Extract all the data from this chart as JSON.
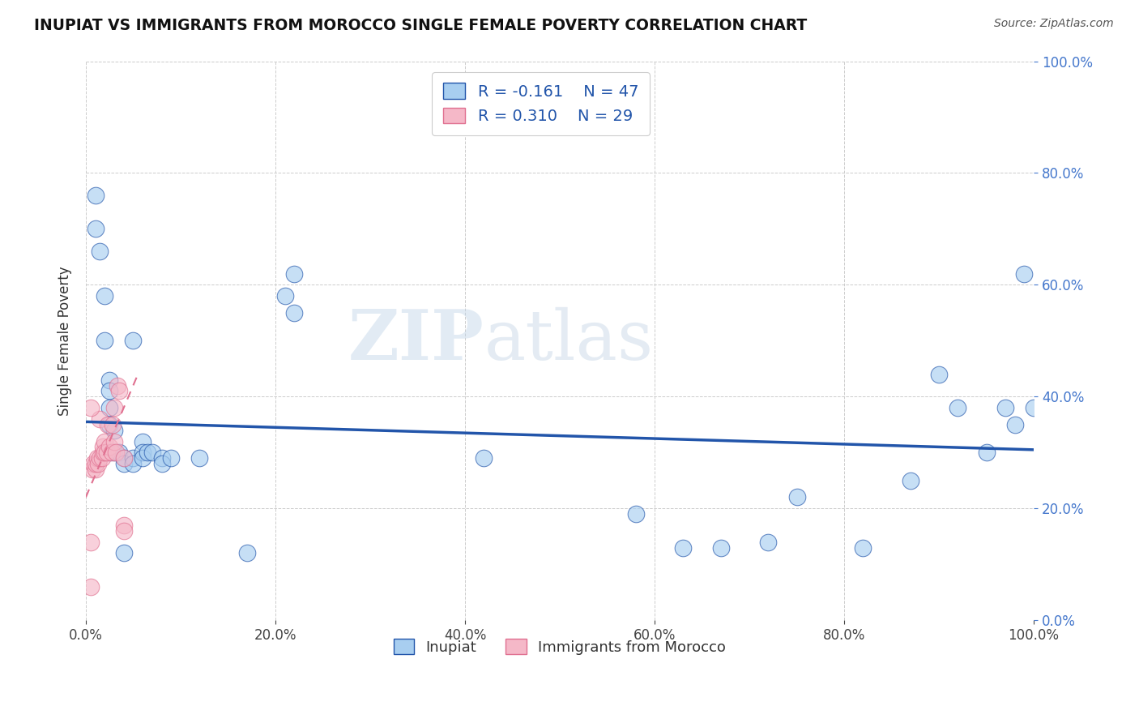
{
  "title": "INUPIAT VS IMMIGRANTS FROM MOROCCO SINGLE FEMALE POVERTY CORRELATION CHART",
  "source": "Source: ZipAtlas.com",
  "ylabel": "Single Female Poverty",
  "xlim": [
    0.0,
    1.0
  ],
  "ylim": [
    0.0,
    1.0
  ],
  "xticks": [
    0.0,
    0.2,
    0.4,
    0.6,
    0.8,
    1.0
  ],
  "yticks": [
    0.0,
    0.2,
    0.4,
    0.6,
    0.8,
    1.0
  ],
  "inupiat_color": "#A8CEF0",
  "morocco_color": "#F5B8C8",
  "trendline_inupiat_color": "#2255AA",
  "trendline_morocco_color": "#E07090",
  "legend_r_inupiat": "-0.161",
  "legend_n_inupiat": "47",
  "legend_r_morocco": "0.310",
  "legend_n_morocco": "29",
  "legend_label_inupiat": "Inupiat",
  "legend_label_morocco": "Immigrants from Morocco",
  "watermark_zip": "ZIP",
  "watermark_atlas": "atlas",
  "inupiat_x": [
    0.01,
    0.01,
    0.015,
    0.02,
    0.02,
    0.025,
    0.025,
    0.025,
    0.025,
    0.025,
    0.03,
    0.03,
    0.035,
    0.04,
    0.04,
    0.04,
    0.05,
    0.05,
    0.05,
    0.06,
    0.06,
    0.06,
    0.065,
    0.07,
    0.08,
    0.08,
    0.09,
    0.12,
    0.17,
    0.21,
    0.22,
    0.22,
    0.42,
    0.58,
    0.63,
    0.67,
    0.72,
    0.75,
    0.82,
    0.87,
    0.9,
    0.92,
    0.95,
    0.97,
    0.98,
    0.99,
    1.0
  ],
  "inupiat_y": [
    0.76,
    0.7,
    0.66,
    0.58,
    0.5,
    0.43,
    0.41,
    0.38,
    0.35,
    0.3,
    0.34,
    0.3,
    0.3,
    0.29,
    0.28,
    0.12,
    0.29,
    0.28,
    0.5,
    0.32,
    0.3,
    0.29,
    0.3,
    0.3,
    0.29,
    0.28,
    0.29,
    0.29,
    0.12,
    0.58,
    0.55,
    0.62,
    0.29,
    0.19,
    0.13,
    0.13,
    0.14,
    0.22,
    0.13,
    0.25,
    0.44,
    0.38,
    0.3,
    0.38,
    0.35,
    0.62,
    0.38
  ],
  "morocco_x": [
    0.005,
    0.005,
    0.007,
    0.008,
    0.01,
    0.01,
    0.012,
    0.013,
    0.015,
    0.015,
    0.017,
    0.018,
    0.018,
    0.02,
    0.02,
    0.022,
    0.023,
    0.025,
    0.027,
    0.028,
    0.03,
    0.03,
    0.032,
    0.033,
    0.035,
    0.04,
    0.04,
    0.04,
    0.005
  ],
  "morocco_y": [
    0.06,
    0.14,
    0.27,
    0.28,
    0.27,
    0.28,
    0.29,
    0.28,
    0.29,
    0.36,
    0.29,
    0.3,
    0.31,
    0.32,
    0.3,
    0.3,
    0.35,
    0.31,
    0.3,
    0.35,
    0.38,
    0.32,
    0.3,
    0.42,
    0.41,
    0.29,
    0.17,
    0.16,
    0.38
  ],
  "trendline_inupiat_x0": 0.0,
  "trendline_inupiat_y0": 0.355,
  "trendline_inupiat_x1": 1.0,
  "trendline_inupiat_y1": 0.305,
  "trendline_morocco_x0": 0.0,
  "trendline_morocco_y0": 0.22,
  "trendline_morocco_x1": 0.055,
  "trendline_morocco_y1": 0.44
}
